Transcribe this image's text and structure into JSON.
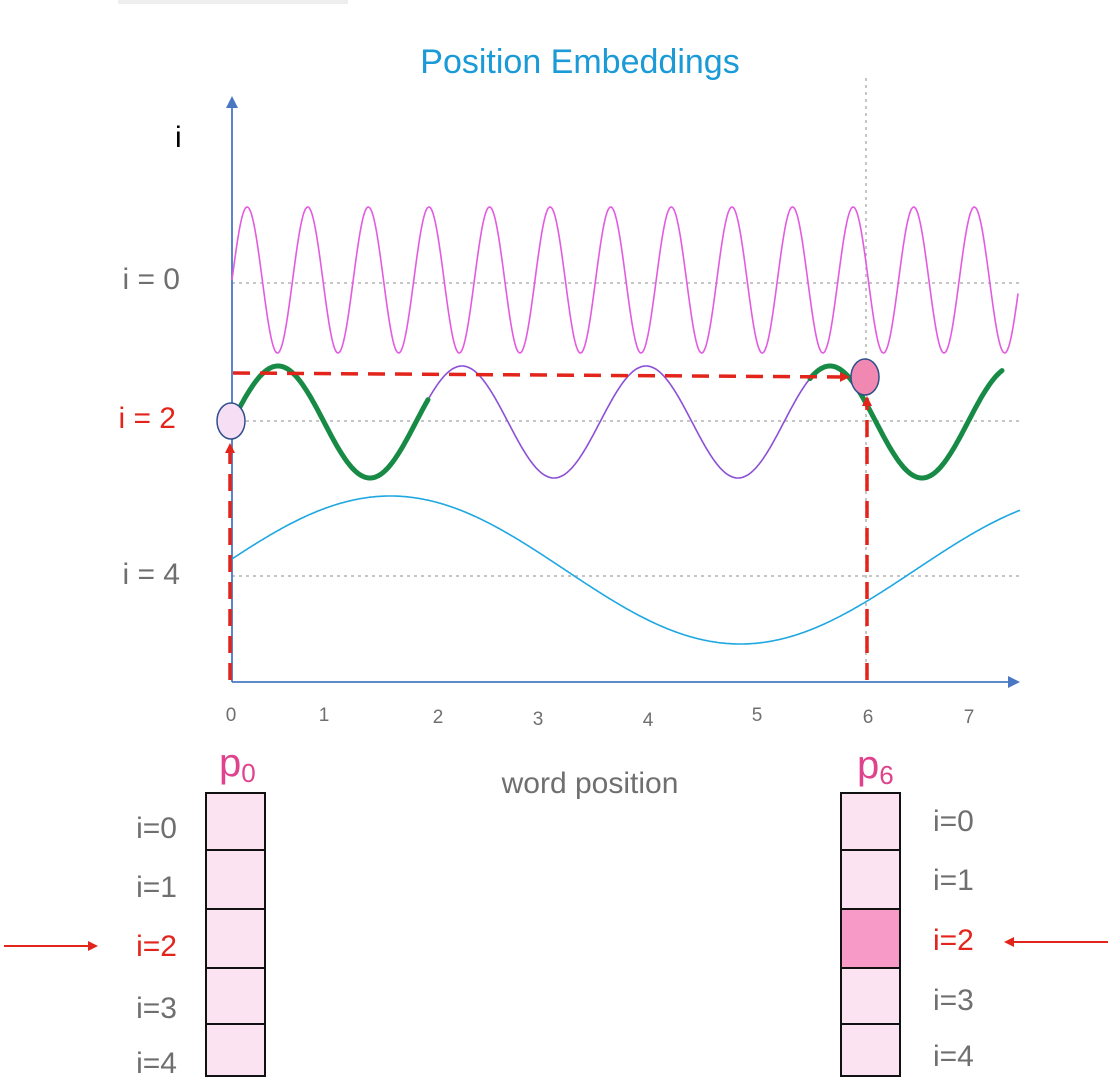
{
  "title": "Position Embeddings",
  "y_axis_label": "i",
  "x_axis_label": "word position",
  "row_labels": [
    "i = 0",
    "i = 2",
    "i = 4"
  ],
  "x_ticks": [
    "0",
    "1",
    "2",
    "3",
    "4",
    "5",
    "6",
    "7"
  ],
  "vectors": [
    {
      "base": "p",
      "subscript": "0",
      "cell_labels": [
        "i=0",
        "i=1",
        "i=2",
        "i=3",
        "i=4"
      ],
      "highlighted_index": 2
    },
    {
      "base": "p",
      "subscript": "6",
      "cell_labels": [
        "i=0",
        "i=1",
        "i=2",
        "i=3",
        "i=4"
      ],
      "highlighted_index": 2
    }
  ],
  "colors": {
    "title": "#1a9ad6",
    "curve_i0": "#e35be0",
    "curve_i2": "#8c4fd6",
    "curve_i2_highlight": "#178a45",
    "curve_i4": "#1ea7e1",
    "arrows": "#e3241b",
    "vector_label": "#e0438d",
    "cell_fill": "#fbe3f1",
    "cell_highlight": "#f79ac8"
  }
}
